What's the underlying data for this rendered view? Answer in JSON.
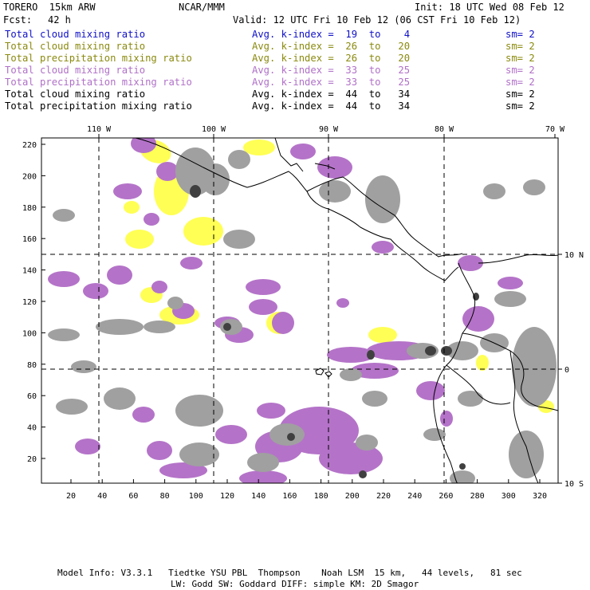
{
  "header": {
    "model": "TORERO  15km ARW",
    "org": "NCAR/MMM",
    "init": "Init: 18 UTC Wed 08 Feb 12",
    "fcst_label": "Fcst:",
    "fcst_value": "42 h",
    "valid": "Valid: 12 UTC Fri 10 Feb 12 (06 CST Fri 10 Feb 12)"
  },
  "legend": [
    {
      "field": "Total cloud mixing ratio",
      "kindex": "Avg. k-index =  19  to    4",
      "sm": "sm= 2",
      "color": "#1010c8"
    },
    {
      "field": "Total cloud mixing ratio",
      "kindex": "Avg. k-index =  26  to   20",
      "sm": "sm= 2",
      "color": "#8a8a10"
    },
    {
      "field": "Total precipitation mixing ratio",
      "kindex": "Avg. k-index =  26  to   20",
      "sm": "sm= 2",
      "color": "#8a8a10"
    },
    {
      "field": "Total cloud mixing ratio",
      "kindex": "Avg. k-index =  33  to   25",
      "sm": "sm= 2",
      "color": "#b070c8"
    },
    {
      "field": "Total precipitation mixing ratio",
      "kindex": "Avg. k-index =  33  to   25",
      "sm": "sm= 2",
      "color": "#b070c8"
    },
    {
      "field": "Total cloud mixing ratio",
      "kindex": "Avg. k-index =  44  to   34",
      "sm": "sm= 2",
      "color": "#000000"
    },
    {
      "field": "Total precipitation mixing ratio",
      "kindex": "Avg. k-index =  44  to   34",
      "sm": "sm= 2",
      "color": "#000000"
    }
  ],
  "axes": {
    "lon_labels": [
      "110 W",
      "100 W",
      "90 W",
      "80 W",
      "70 W"
    ],
    "lat_labels": [
      "10 N",
      "0",
      "10 S"
    ],
    "x_ticks": [
      "20",
      "40",
      "60",
      "80",
      "100",
      "120",
      "140",
      "160",
      "180",
      "200",
      "220",
      "240",
      "260",
      "280",
      "300",
      "320"
    ],
    "y_ticks": [
      "220",
      "200",
      "180",
      "160",
      "140",
      "120",
      "100",
      "80",
      "60",
      "40",
      "20"
    ]
  },
  "colors": {
    "yellow": "#ffff55",
    "purple": "#b473c8",
    "gray": "#a0a0a0",
    "dark": "#404040"
  },
  "footer": {
    "line1": "Model Info: V3.3.1   Tiedtke YSU PBL  Thompson    Noah LSM  15 km,   44 levels,   81 sec",
    "line2": "LW: Godd SW: Goddard DIFF: simple KM: 2D Smagor"
  }
}
